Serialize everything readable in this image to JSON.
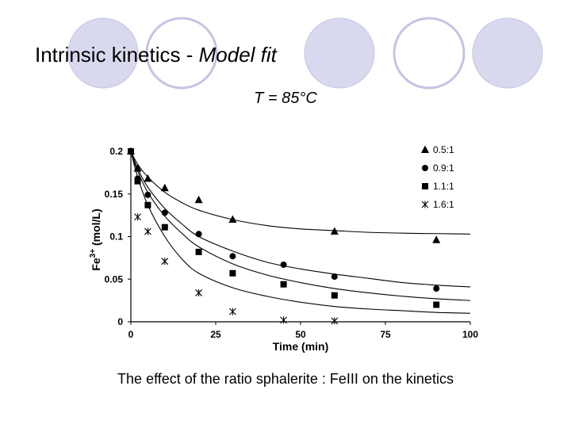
{
  "slide": {
    "title_main": "Intrinsic kinetics - ",
    "title_italic": "Model fit",
    "subtitle": "T = 85°C",
    "caption": "The effect of the ratio sphalerite : FeIII on the kinetics"
  },
  "colors": {
    "circle_fill": "#d8d8ee",
    "circle_stroke": "#c4c4e2",
    "plot_ink": "#000000"
  },
  "chart_data": {
    "type": "scatter",
    "title": "",
    "xlabel": "Time (min)",
    "ylabel_base": "Fe",
    "ylabel_sup": "3+",
    "ylabel_unit": " (mol/L)",
    "xlim": [
      0,
      100
    ],
    "ylim": [
      0,
      0.2
    ],
    "xticks": [
      0,
      25,
      50,
      75,
      100
    ],
    "xtick_labels": [
      "0",
      "25",
      "50",
      "75",
      "100"
    ],
    "yticks": [
      0,
      0.05,
      0.1,
      0.15,
      0.2
    ],
    "ytick_labels": [
      "0",
      "0.05",
      "0.1",
      "0.15",
      "0.2"
    ],
    "grid": false,
    "legend_position": "top-right",
    "series": [
      {
        "name": "0.5:1",
        "marker": "triangle",
        "points": [
          [
            0,
            0.2
          ],
          [
            2,
            0.18
          ],
          [
            5,
            0.168
          ],
          [
            10,
            0.157
          ],
          [
            20,
            0.143
          ],
          [
            30,
            0.12
          ],
          [
            60,
            0.106
          ],
          [
            90,
            0.096
          ]
        ],
        "fit": [
          [
            0,
            0.2
          ],
          [
            2,
            0.185
          ],
          [
            5,
            0.17
          ],
          [
            10,
            0.152
          ],
          [
            15,
            0.14
          ],
          [
            20,
            0.131
          ],
          [
            30,
            0.12
          ],
          [
            40,
            0.113
          ],
          [
            50,
            0.109
          ],
          [
            60,
            0.107
          ],
          [
            70,
            0.105
          ],
          [
            80,
            0.104
          ],
          [
            90,
            0.1035
          ],
          [
            100,
            0.103
          ]
        ]
      },
      {
        "name": "0.9:1",
        "marker": "circle",
        "points": [
          [
            0,
            0.2
          ],
          [
            2,
            0.168
          ],
          [
            5,
            0.149
          ],
          [
            10,
            0.128
          ],
          [
            20,
            0.103
          ],
          [
            30,
            0.077
          ],
          [
            45,
            0.067
          ],
          [
            60,
            0.053
          ],
          [
            90,
            0.039
          ]
        ],
        "fit": [
          [
            0,
            0.2
          ],
          [
            2,
            0.18
          ],
          [
            5,
            0.158
          ],
          [
            10,
            0.133
          ],
          [
            15,
            0.115
          ],
          [
            20,
            0.1
          ],
          [
            30,
            0.083
          ],
          [
            40,
            0.07
          ],
          [
            50,
            0.062
          ],
          [
            60,
            0.056
          ],
          [
            70,
            0.051
          ],
          [
            80,
            0.046
          ],
          [
            90,
            0.043
          ],
          [
            100,
            0.041
          ]
        ]
      },
      {
        "name": "1.1:1",
        "marker": "square",
        "points": [
          [
            0,
            0.2
          ],
          [
            2,
            0.165
          ],
          [
            5,
            0.137
          ],
          [
            10,
            0.111
          ],
          [
            20,
            0.082
          ],
          [
            30,
            0.057
          ],
          [
            45,
            0.044
          ],
          [
            60,
            0.031
          ],
          [
            90,
            0.02
          ]
        ],
        "fit": [
          [
            0,
            0.2
          ],
          [
            2,
            0.177
          ],
          [
            5,
            0.152
          ],
          [
            10,
            0.124
          ],
          [
            15,
            0.104
          ],
          [
            20,
            0.088
          ],
          [
            30,
            0.068
          ],
          [
            40,
            0.055
          ],
          [
            50,
            0.046
          ],
          [
            60,
            0.039
          ],
          [
            70,
            0.034
          ],
          [
            80,
            0.03
          ],
          [
            90,
            0.027
          ],
          [
            100,
            0.025
          ]
        ]
      },
      {
        "name": "1.6:1",
        "marker": "star",
        "points": [
          [
            2,
            0.123
          ],
          [
            5,
            0.106
          ],
          [
            10,
            0.071
          ],
          [
            20,
            0.034
          ],
          [
            30,
            0.012
          ],
          [
            45,
            0.002
          ],
          [
            60,
            0.001
          ]
        ],
        "fit": [
          [
            0,
            0.2
          ],
          [
            2,
            0.17
          ],
          [
            5,
            0.137
          ],
          [
            10,
            0.1
          ],
          [
            15,
            0.074
          ],
          [
            20,
            0.057
          ],
          [
            30,
            0.04
          ],
          [
            40,
            0.03
          ],
          [
            50,
            0.023
          ],
          [
            60,
            0.018
          ],
          [
            70,
            0.015
          ],
          [
            80,
            0.013
          ],
          [
            90,
            0.011
          ],
          [
            100,
            0.01
          ]
        ]
      }
    ]
  }
}
